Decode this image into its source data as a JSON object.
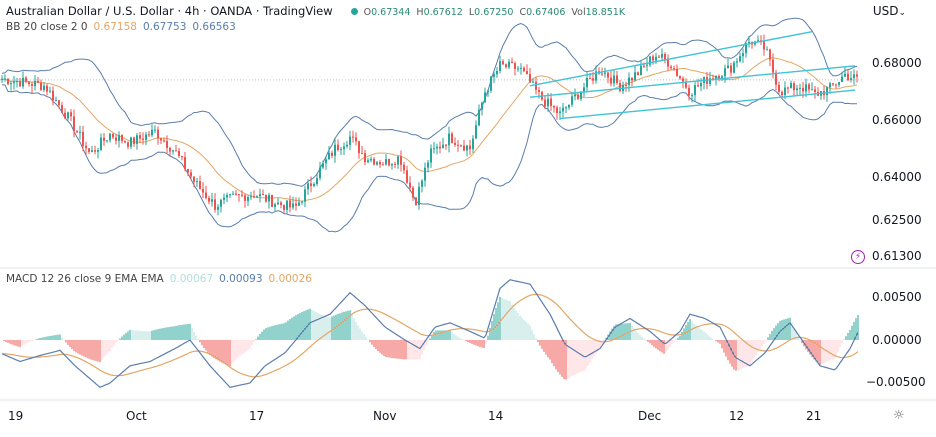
{
  "header": {
    "title": "Australian Dollar / U.S. Dollar · 4h · OANDA · TradingView",
    "status_color": "#26a69a",
    "ohlc": {
      "o_label": "O",
      "o": "0.67344",
      "h_label": "H",
      "h": "0.67612",
      "l_label": "L",
      "l": "0.67250",
      "c_label": "C",
      "c": "0.67406",
      "vol_label": "Vol",
      "vol": "18.851K"
    },
    "currency": "USD",
    "currency_dropdown": "⌄"
  },
  "indicators": {
    "bb": {
      "label": "BB 20 close 2 0",
      "basis": "0.67158",
      "upper": "0.67753",
      "lower": "0.66563",
      "basis_color": "#e4a666",
      "band_color": "#5b7dac"
    },
    "macd": {
      "label": "MACD 12 26 close 9 EMA EMA",
      "hist": "0.00067",
      "macd": "0.00093",
      "signal": "0.00026",
      "hist_color": "#b2dfdb",
      "macd_color": "#5b7dac",
      "signal_color": "#e4a666"
    }
  },
  "price_axis": {
    "labels": [
      "0.68000",
      "0.66000",
      "0.64000",
      "0.62500",
      "0.61300"
    ]
  },
  "macd_axis": {
    "labels": [
      "0.00500",
      "0.00000",
      "−0.00500"
    ]
  },
  "time_axis": {
    "labels": [
      "19",
      "Oct",
      "17",
      "Nov",
      "14",
      "Dec",
      "12",
      "21"
    ]
  },
  "colors": {
    "up": "#26a69a",
    "down": "#ef5350",
    "channel": "#3fc3d8",
    "grid": "#e0e3eb"
  },
  "chart_data": [
    {
      "type": "candlestick",
      "title": "Australian Dollar / U.S. Dollar · 4h · OANDA",
      "xlabel": "",
      "ylabel": "USD",
      "x_ticks": [
        "19",
        "Oct",
        "17",
        "Nov",
        "14",
        "Dec",
        "12",
        "21"
      ],
      "y_ticks": [
        0.68,
        0.66,
        0.64,
        0.625,
        0.613
      ],
      "ylim": [
        0.613,
        0.692
      ],
      "close_path": [
        [
          0,
          0.6745
        ],
        [
          20,
          0.6735
        ],
        [
          45,
          0.672
        ],
        [
          70,
          0.66
        ],
        [
          90,
          0.648
        ],
        [
          110,
          0.655
        ],
        [
          130,
          0.652
        ],
        [
          155,
          0.656
        ],
        [
          175,
          0.649
        ],
        [
          195,
          0.638
        ],
        [
          215,
          0.63
        ],
        [
          235,
          0.633
        ],
        [
          255,
          0.634
        ],
        [
          275,
          0.631
        ],
        [
          295,
          0.629
        ],
        [
          315,
          0.64
        ],
        [
          335,
          0.65
        ],
        [
          350,
          0.654
        ],
        [
          365,
          0.647
        ],
        [
          385,
          0.645
        ],
        [
          400,
          0.647
        ],
        [
          415,
          0.631
        ],
        [
          430,
          0.648
        ],
        [
          450,
          0.654
        ],
        [
          470,
          0.65
        ],
        [
          485,
          0.67
        ],
        [
          500,
          0.679
        ],
        [
          520,
          0.678
        ],
        [
          540,
          0.668
        ],
        [
          560,
          0.662
        ],
        [
          580,
          0.67
        ],
        [
          600,
          0.678
        ],
        [
          620,
          0.672
        ],
        [
          640,
          0.677
        ],
        [
          655,
          0.683
        ],
        [
          670,
          0.68
        ],
        [
          690,
          0.67
        ],
        [
          710,
          0.675
        ],
        [
          730,
          0.678
        ],
        [
          750,
          0.688
        ],
        [
          765,
          0.685
        ],
        [
          780,
          0.67
        ],
        [
          800,
          0.672
        ],
        [
          815,
          0.669
        ],
        [
          830,
          0.671
        ],
        [
          845,
          0.676
        ],
        [
          858,
          0.6741
        ]
      ],
      "current_price": 0.67406,
      "bollinger": {
        "period": 20,
        "stddev": 2,
        "basis": 0.67158,
        "upper": 0.67753,
        "lower": 0.66563
      },
      "annotations": [
        {
          "type": "channel_upper",
          "from": [
            530,
            0.672
          ],
          "to": [
            812,
            0.691
          ]
        },
        {
          "type": "channel_mid",
          "from": [
            530,
            0.668
          ],
          "to": [
            855,
            0.679
          ]
        },
        {
          "type": "channel_lower",
          "from": [
            560,
            0.6605
          ],
          "to": [
            855,
            0.6705
          ]
        }
      ]
    },
    {
      "type": "line",
      "title": "MACD 12 26 close 9 EMA EMA",
      "y_ticks": [
        0.005,
        0.0,
        -0.005
      ],
      "ylim": [
        -0.0065,
        0.0075
      ],
      "series": [
        {
          "name": "MACD",
          "value": 0.00093
        },
        {
          "name": "Signal",
          "value": 0.00026
        },
        {
          "name": "Histogram",
          "value": 0.00067
        }
      ],
      "macd_path": [
        [
          0,
          -0.0015
        ],
        [
          20,
          -0.0025
        ],
        [
          40,
          -0.0018
        ],
        [
          60,
          -0.0012
        ],
        [
          75,
          -0.003
        ],
        [
          100,
          -0.0055
        ],
        [
          110,
          -0.005
        ],
        [
          130,
          -0.003
        ],
        [
          150,
          -0.0025
        ],
        [
          175,
          -0.001
        ],
        [
          190,
          0.0
        ],
        [
          210,
          -0.003
        ],
        [
          230,
          -0.0055
        ],
        [
          250,
          -0.005
        ],
        [
          265,
          -0.003
        ],
        [
          285,
          -0.0015
        ],
        [
          310,
          0.002
        ],
        [
          330,
          0.003
        ],
        [
          350,
          0.0055
        ],
        [
          365,
          0.004
        ],
        [
          385,
          0.0015
        ],
        [
          405,
          0.0
        ],
        [
          420,
          -0.001
        ],
        [
          435,
          0.0015
        ],
        [
          450,
          0.002
        ],
        [
          470,
          0.001
        ],
        [
          485,
          0.0002
        ],
        [
          500,
          0.006
        ],
        [
          510,
          0.007
        ],
        [
          530,
          0.0065
        ],
        [
          550,
          0.003
        ],
        [
          565,
          -0.0005
        ],
        [
          585,
          -0.002
        ],
        [
          600,
          -0.001
        ],
        [
          615,
          0.0015
        ],
        [
          630,
          0.0025
        ],
        [
          650,
          0.001
        ],
        [
          665,
          -0.0005
        ],
        [
          680,
          0.001
        ],
        [
          690,
          0.003
        ],
        [
          705,
          0.0025
        ],
        [
          720,
          0.0015
        ],
        [
          735,
          -0.002
        ],
        [
          750,
          -0.003
        ],
        [
          765,
          -0.0015
        ],
        [
          780,
          0.001
        ],
        [
          790,
          0.002
        ],
        [
          805,
          -0.0005
        ],
        [
          820,
          -0.003
        ],
        [
          835,
          -0.0035
        ],
        [
          850,
          -0.001
        ],
        [
          858,
          0.0009
        ]
      ]
    }
  ]
}
